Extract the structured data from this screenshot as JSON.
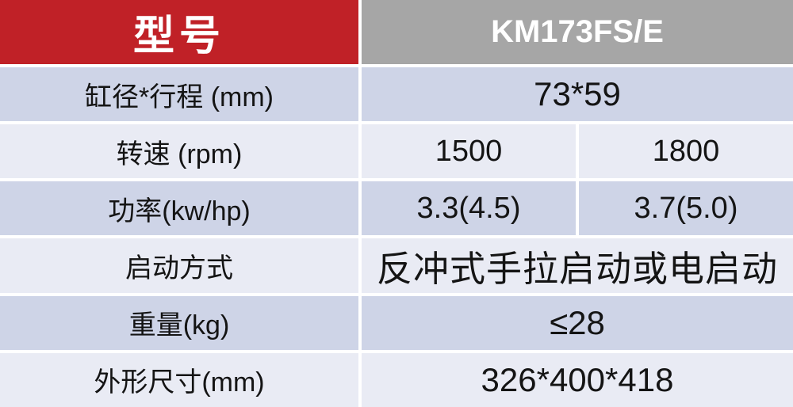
{
  "chart_data": {
    "type": "table",
    "title": "KM173FS/E engine specification table",
    "columns": [
      "型号",
      "KM173FS/E"
    ],
    "rows": [
      [
        "缸径*行程 (mm)",
        "73*59"
      ],
      [
        "转速 (rpm)",
        "1500",
        "1800"
      ],
      [
        "功率(kw/hp)",
        "3.3(4.5)",
        "3.7(5.0)"
      ],
      [
        "启动方式",
        "反冲式手拉启动或电启动"
      ],
      [
        "重量(kg)",
        "≤28"
      ],
      [
        "外形尺寸(mm)",
        "326*400*418"
      ]
    ],
    "layout": {
      "header_left_bg": "#C02127",
      "header_right_bg": "#A6A6A6",
      "row_dark_bg": "#CED4E7",
      "row_light_bg": "#E9EBF4",
      "divider_color": "#FFFFFF",
      "header_text_color": "#FFFFFF",
      "body_text_color": "#141414"
    }
  }
}
